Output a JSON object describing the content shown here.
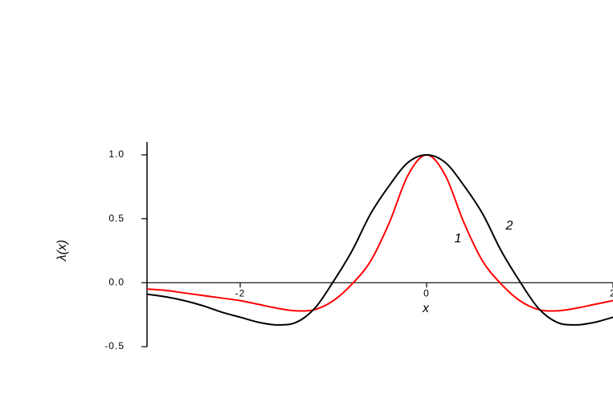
{
  "chart_data": {
    "type": "line",
    "x_label": "x",
    "y_label": "λ(x)",
    "x": [
      -3,
      -2.8,
      -2.6,
      -2.4,
      -2.2,
      -2,
      -1.8,
      -1.6,
      -1.4,
      -1.2,
      -1,
      -0.8,
      -0.6,
      -0.4,
      -0.2,
      0,
      0.2,
      0.4,
      0.6,
      0.8,
      1,
      1.2,
      1.4,
      1.6,
      1.8,
      2
    ],
    "series": [
      {
        "name": "1",
        "color": "#ff0000",
        "values": [
          -0.05,
          -0.06,
          -0.08,
          -0.1,
          -0.12,
          -0.14,
          -0.17,
          -0.2,
          -0.22,
          -0.21,
          -0.14,
          -0.01,
          0.17,
          0.47,
          0.84,
          1.0,
          0.84,
          0.47,
          0.17,
          -0.01,
          -0.14,
          -0.21,
          -0.22,
          -0.2,
          -0.17,
          -0.14
        ]
      },
      {
        "name": "2",
        "color": "#000000",
        "values": [
          -0.09,
          -0.11,
          -0.14,
          -0.18,
          -0.23,
          -0.27,
          -0.31,
          -0.33,
          -0.31,
          -0.2,
          0.01,
          0.25,
          0.54,
          0.76,
          0.94,
          1.0,
          0.94,
          0.76,
          0.54,
          0.25,
          0.01,
          -0.2,
          -0.31,
          -0.33,
          -0.31,
          -0.27
        ]
      }
    ],
    "xlim": [
      -3,
      2
    ],
    "ylim": [
      -0.5,
      1.1
    ],
    "xticks": [
      -2,
      0,
      2
    ],
    "yticks": [
      -0.5,
      {
        "value": 0,
        "label": "0.0"
      },
      0.5,
      {
        "value": 1,
        "label": "1.0"
      }
    ]
  }
}
